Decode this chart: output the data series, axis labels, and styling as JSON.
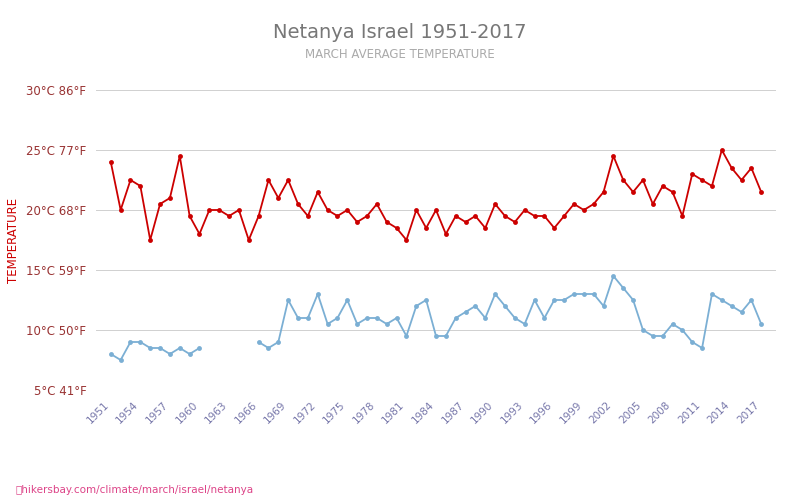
{
  "title": "Netanya Israel 1951-2017",
  "subtitle": "MARCH AVERAGE TEMPERATURE",
  "ylabel": "TEMPERATURE",
  "years": [
    1951,
    1952,
    1953,
    1954,
    1955,
    1956,
    1957,
    1958,
    1959,
    1960,
    1961,
    1962,
    1963,
    1964,
    1965,
    1966,
    1967,
    1968,
    1969,
    1970,
    1971,
    1972,
    1973,
    1974,
    1975,
    1976,
    1977,
    1978,
    1979,
    1980,
    1981,
    1982,
    1983,
    1984,
    1985,
    1986,
    1987,
    1988,
    1989,
    1990,
    1991,
    1992,
    1993,
    1994,
    1995,
    1996,
    1997,
    1998,
    1999,
    2000,
    2001,
    2002,
    2003,
    2004,
    2005,
    2006,
    2007,
    2008,
    2009,
    2010,
    2011,
    2012,
    2013,
    2014,
    2015,
    2016,
    2017
  ],
  "day_temps": [
    24.0,
    20.0,
    22.5,
    22.0,
    17.5,
    20.5,
    21.0,
    24.5,
    19.5,
    18.0,
    20.0,
    20.0,
    19.5,
    20.0,
    17.5,
    19.5,
    22.5,
    21.0,
    22.5,
    20.5,
    19.5,
    21.5,
    20.0,
    19.5,
    20.0,
    19.0,
    19.5,
    20.5,
    19.0,
    18.5,
    17.5,
    20.0,
    18.5,
    20.0,
    18.0,
    19.5,
    19.0,
    19.5,
    18.5,
    20.5,
    19.5,
    19.0,
    20.0,
    19.5,
    19.5,
    18.5,
    19.5,
    20.5,
    20.0,
    20.5,
    21.5,
    24.5,
    22.5,
    21.5,
    22.5,
    20.5,
    22.0,
    21.5,
    19.5,
    23.0,
    22.5,
    22.0,
    25.0,
    23.5,
    22.5,
    23.5,
    21.5
  ],
  "night_temps": [
    8.0,
    7.5,
    9.0,
    9.0,
    8.5,
    8.5,
    8.0,
    8.5,
    8.0,
    8.5,
    null,
    null,
    null,
    null,
    null,
    9.0,
    8.5,
    9.0,
    12.5,
    11.0,
    11.0,
    13.0,
    10.5,
    11.0,
    12.5,
    10.5,
    11.0,
    11.0,
    10.5,
    11.0,
    9.5,
    12.0,
    12.5,
    9.5,
    9.5,
    11.0,
    11.5,
    12.0,
    11.0,
    13.0,
    12.0,
    11.0,
    10.5,
    12.5,
    11.0,
    12.5,
    12.5,
    13.0,
    13.0,
    13.0,
    12.0,
    14.5,
    13.5,
    12.5,
    10.0,
    9.5,
    9.5,
    10.5,
    10.0,
    9.0,
    8.5,
    13.0,
    12.5,
    12.0,
    11.5,
    12.5,
    10.5
  ],
  "day_color": "#cc0000",
  "night_color": "#7bafd4",
  "background_color": "#ffffff",
  "grid_color": "#d0d0d0",
  "ylim_min": 5,
  "ylim_max": 30,
  "yticks_c": [
    5,
    10,
    15,
    20,
    25,
    30
  ],
  "yticks_f": [
    41,
    50,
    59,
    68,
    77,
    86
  ],
  "xtick_years": [
    1951,
    1954,
    1957,
    1960,
    1963,
    1966,
    1969,
    1972,
    1975,
    1978,
    1981,
    1984,
    1987,
    1990,
    1993,
    1996,
    1999,
    2002,
    2005,
    2008,
    2011,
    2014,
    2017
  ],
  "footer_text": "hikersbay.com/climate/march/israel/netanya",
  "title_color": "#777777",
  "subtitle_color": "#aaaaaa",
  "ylabel_color": "#cc0000",
  "tick_label_color": "#993333",
  "xtick_label_color": "#7777aa"
}
